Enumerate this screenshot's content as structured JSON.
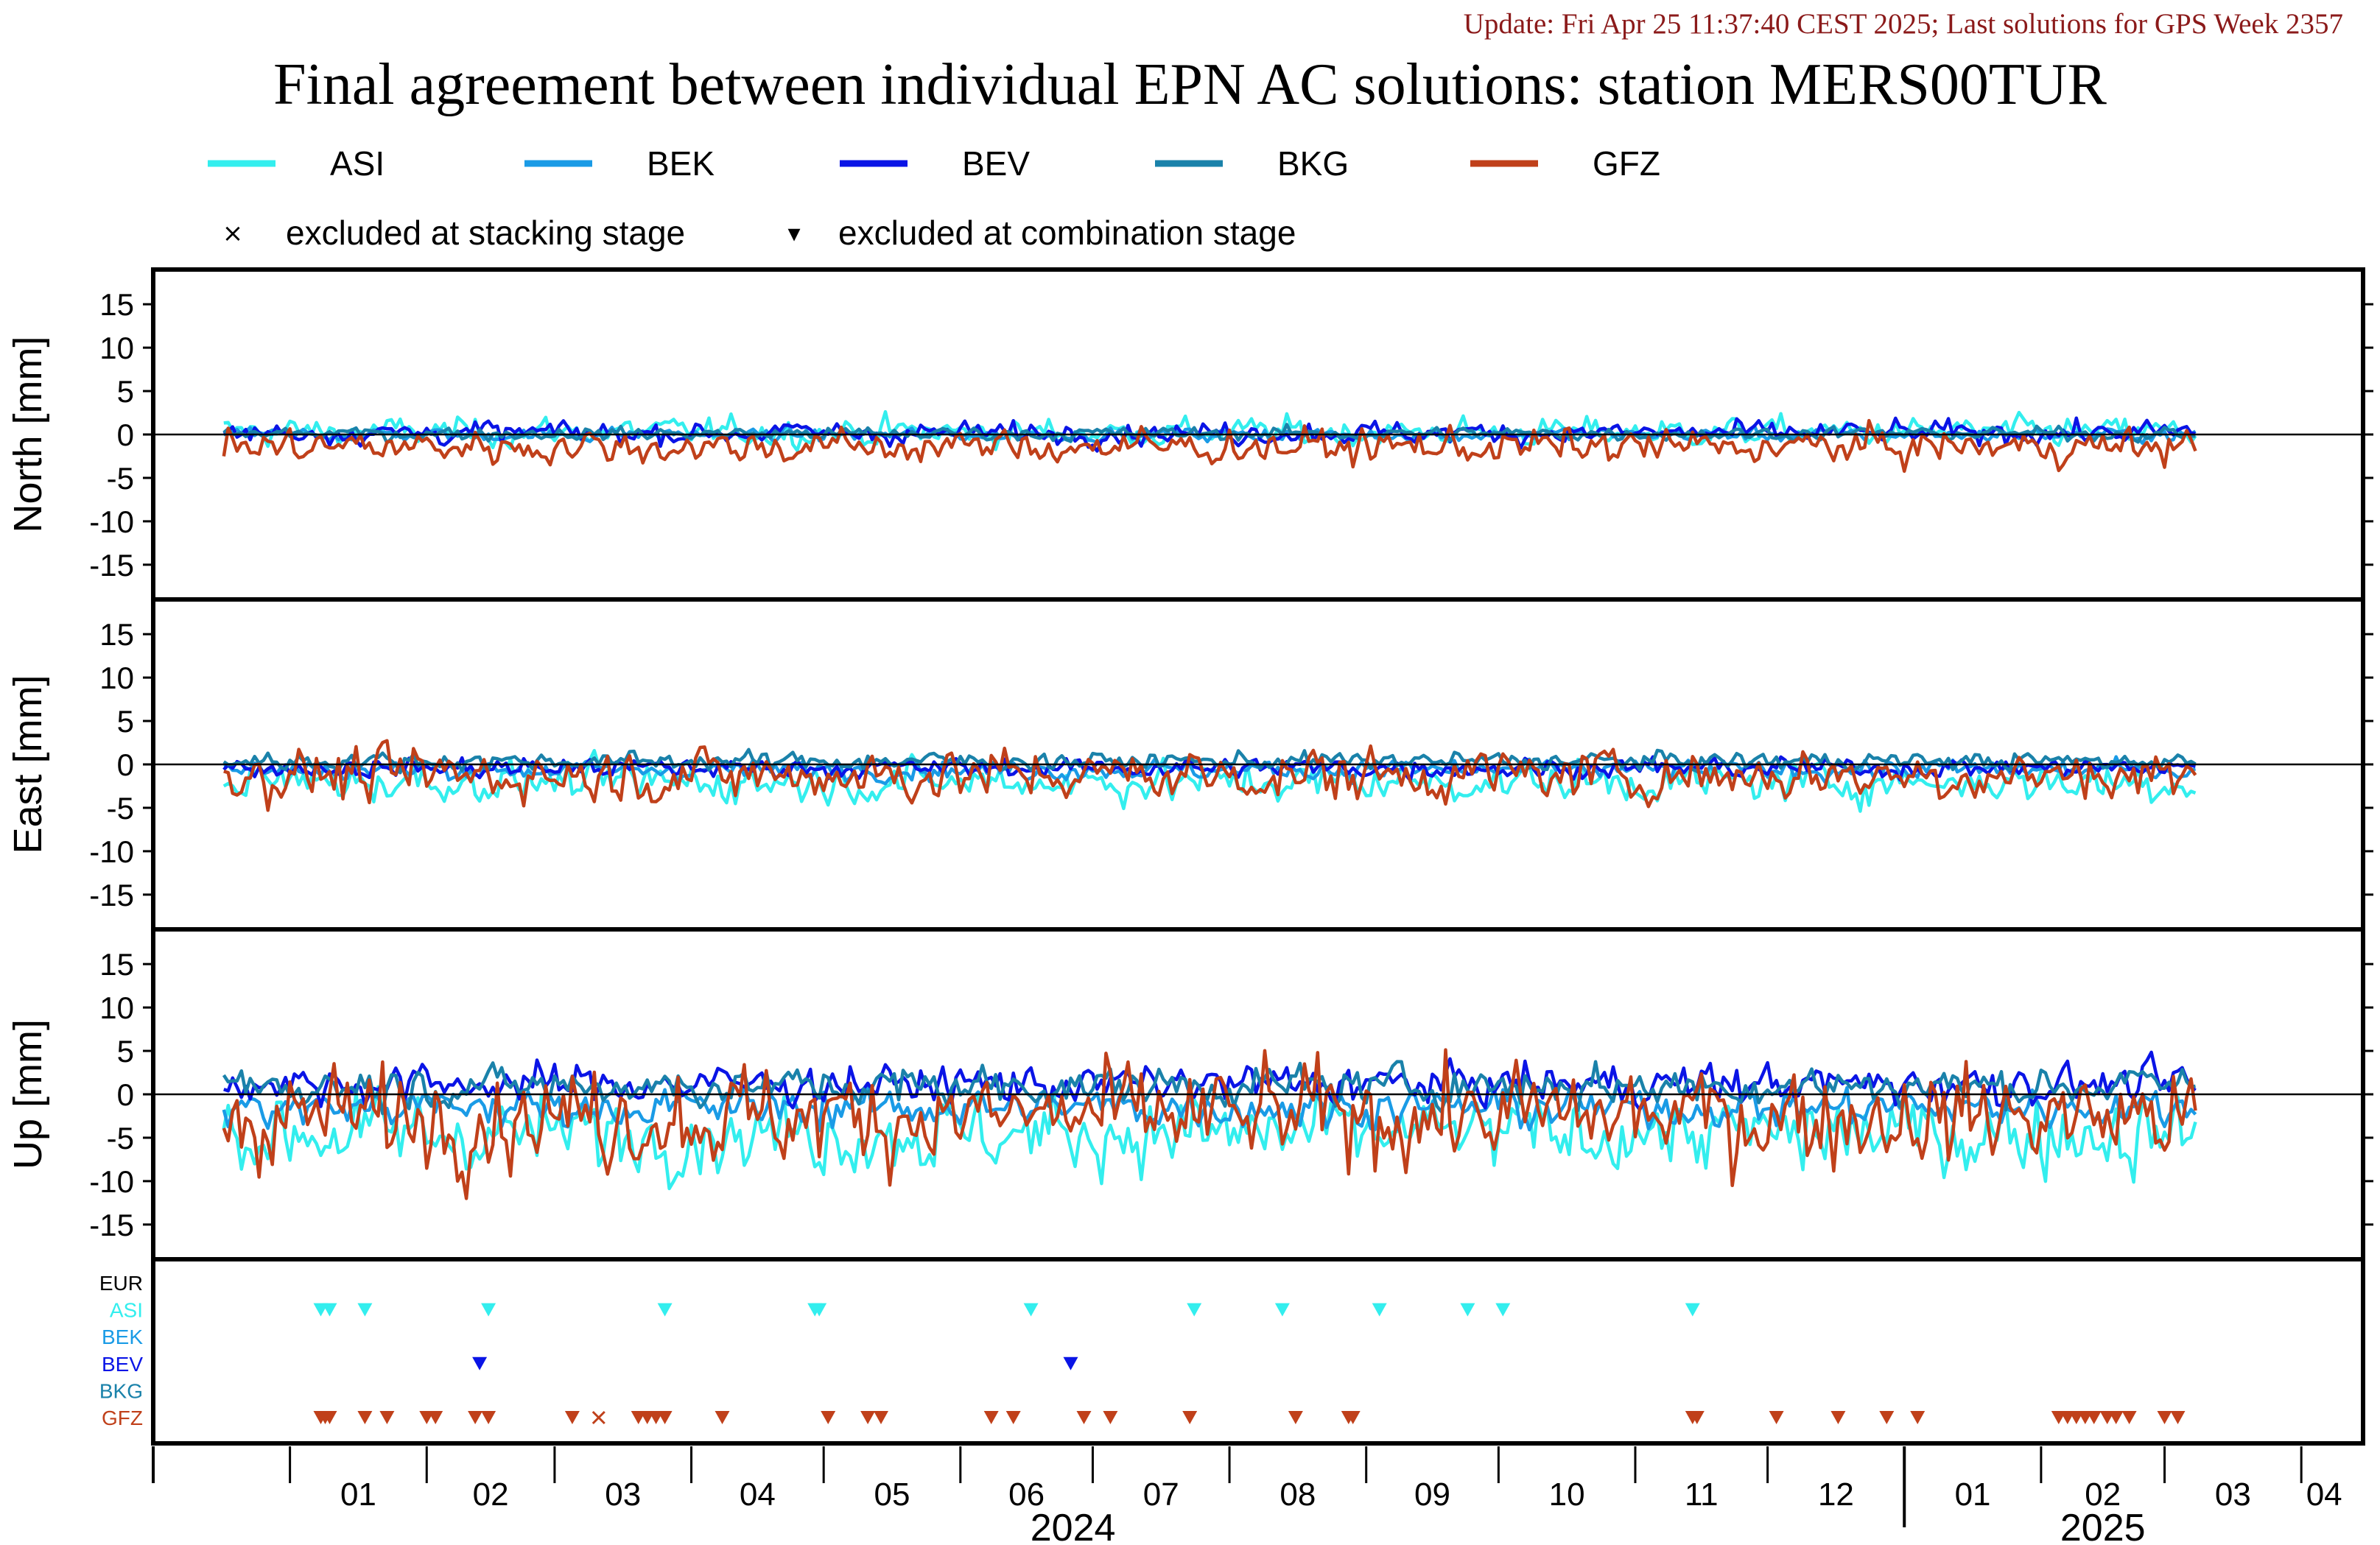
{
  "update_text": "Update: Fri Apr 25 11:37:40 CEST 2025; Last solutions for GPS Week 2357",
  "title": "Final agreement between individual EPN AC solutions: station MERS00TUR",
  "legend": {
    "series": [
      {
        "name": "ASI",
        "color": "#33eeee"
      },
      {
        "name": "BEK",
        "color": "#1a9be6"
      },
      {
        "name": "BEV",
        "color": "#0a14e6"
      },
      {
        "name": "BKG",
        "color": "#1a82aa"
      },
      {
        "name": "GFZ",
        "color": "#c0401a"
      }
    ],
    "stacking_symbol": "×",
    "stacking_label": "excluded at stacking stage",
    "combination_symbol": "▾",
    "combination_label": "excluded at combination stage"
  },
  "chart_data": {
    "type": "line",
    "x_unit": "date",
    "xlim": [
      "2023-12-01",
      "2025-04-15"
    ],
    "month_ticks": [
      "01",
      "02",
      "03",
      "04",
      "05",
      "06",
      "07",
      "08",
      "09",
      "10",
      "11",
      "12",
      "01",
      "02",
      "03",
      "04"
    ],
    "year_labels": [
      "2024",
      "2025"
    ],
    "panels": [
      {
        "ylabel": "North [mm]",
        "ylim": [
          -19,
          19
        ],
        "yticks": [
          15,
          10,
          5,
          0,
          -5,
          -10,
          -15
        ],
        "series": [
          {
            "name": "ASI",
            "mean": 0.3,
            "amp": 1.3
          },
          {
            "name": "BEK",
            "mean": 0.0,
            "amp": 0.6
          },
          {
            "name": "BEV",
            "mean": 0.2,
            "amp": 1.0
          },
          {
            "name": "BKG",
            "mean": 0.1,
            "amp": 0.6
          },
          {
            "name": "GFZ",
            "mean": -1.4,
            "amp": 1.6
          }
        ]
      },
      {
        "ylabel": "East [mm]",
        "ylim": [
          -19,
          19
        ],
        "yticks": [
          15,
          10,
          5,
          0,
          -5,
          -10,
          -15
        ],
        "series": [
          {
            "name": "ASI",
            "mean": -2.0,
            "amp": 1.8
          },
          {
            "name": "BEK",
            "mean": -0.6,
            "amp": 0.9
          },
          {
            "name": "BEV",
            "mean": -0.4,
            "amp": 0.9
          },
          {
            "name": "BKG",
            "mean": 0.4,
            "amp": 0.8
          },
          {
            "name": "GFZ",
            "mean": -1.2,
            "amp": 2.4
          }
        ]
      },
      {
        "ylabel": "Up [mm]",
        "ylim": [
          -19,
          19
        ],
        "yticks": [
          15,
          10,
          5,
          0,
          -5,
          -10,
          -15
        ],
        "series": [
          {
            "name": "ASI",
            "mean": -4.5,
            "amp": 3.5
          },
          {
            "name": "BEK",
            "mean": -1.5,
            "amp": 1.8
          },
          {
            "name": "BEV",
            "mean": 1.2,
            "amp": 1.8
          },
          {
            "name": "BKG",
            "mean": 1.0,
            "amp": 1.8
          },
          {
            "name": "GFZ",
            "mean": -2.5,
            "amp": 4.5
          }
        ]
      }
    ],
    "exclusion_rows": [
      "EUR",
      "ASI",
      "BEK",
      "BEV",
      "BKG",
      "GFZ"
    ],
    "exclusions": [
      {
        "row": "ASI",
        "type": "combination",
        "dates": [
          "2024-01-08",
          "2024-01-10",
          "2024-01-18",
          "2024-02-15",
          "2024-03-26",
          "2024-04-29",
          "2024-04-30",
          "2024-06-17",
          "2024-07-24",
          "2024-08-13",
          "2024-09-04",
          "2024-09-24",
          "2024-10-02",
          "2024-11-14"
        ]
      },
      {
        "row": "BEV",
        "type": "combination",
        "dates": [
          "2024-02-13",
          "2024-06-26"
        ]
      },
      {
        "row": "GFZ",
        "type": "combination",
        "dates": [
          "2024-01-08",
          "2024-01-09",
          "2024-01-10",
          "2024-01-18",
          "2024-01-23",
          "2024-02-01",
          "2024-02-03",
          "2024-02-12",
          "2024-02-15",
          "2024-03-05",
          "2024-03-20",
          "2024-03-22",
          "2024-03-24",
          "2024-03-26",
          "2024-04-08",
          "2024-05-02",
          "2024-05-11",
          "2024-05-14",
          "2024-06-08",
          "2024-06-13",
          "2024-06-29",
          "2024-07-05",
          "2024-07-23",
          "2024-08-16",
          "2024-08-28",
          "2024-08-29",
          "2024-11-14",
          "2024-11-15",
          "2024-12-03",
          "2024-12-17",
          "2024-12-28",
          "2025-01-04",
          "2025-02-05",
          "2025-02-07",
          "2025-02-09",
          "2025-02-11",
          "2025-02-13",
          "2025-02-16",
          "2025-02-18",
          "2025-02-21",
          "2025-03-01",
          "2025-03-04"
        ]
      },
      {
        "row": "GFZ",
        "type": "stacking",
        "dates": [
          "2024-03-11"
        ]
      }
    ]
  }
}
